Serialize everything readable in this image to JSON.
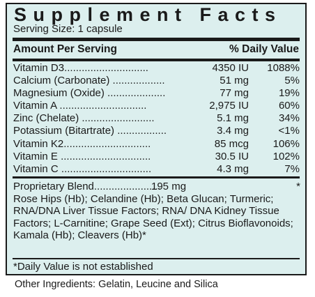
{
  "title": "Supplement Facts",
  "serving_size": "Serving Size: 1 capsule",
  "header": {
    "amount_label": "Amount Per Serving",
    "dv_label": "% Daily Value"
  },
  "nutrients": [
    {
      "text": "Vitamin D3.............................",
      "amount": "4350 IU",
      "dv": "1088%"
    },
    {
      "text": "Calcium (Carbonate) ..................",
      "amount": "51 mg",
      "dv": "5%"
    },
    {
      "text": "Magnesium (Oxide) ....................",
      "amount": "77 mg",
      "dv": "19%"
    },
    {
      "text": "Vitamin A ..............................",
      "amount": "2,975 IU",
      "dv": "60%"
    },
    {
      "text": "Zinc (Chelate) .........................",
      "amount": "5.1 mg",
      "dv": "34%"
    },
    {
      "text": "Potassium (Bitartrate) .................",
      "amount": "3.4 mg",
      "dv": "<1%"
    },
    {
      "text": "Vitamin K2..............................",
      "amount": "85 mcg",
      "dv": "106%"
    },
    {
      "text": "Vitamin E ...............................",
      "amount": "30.5 IU",
      "dv": "102%"
    },
    {
      "text": "Vitamin C ...............................",
      "amount": "4.3 mg",
      "dv": "7%"
    }
  ],
  "blend": {
    "label": "Proprietary Blend.......................",
    "amount": "195 mg",
    "star": "*",
    "ingredients": "Rose Hips (Hb); Celandine (Hb); Beta Glucan; Turmeric; RNA/DNA Liver Tissue Factors; RNA/ DNA Kidney Tissue Factors; L-Carnitine; Grape Seed (Ext); Citrus Bioflavonoids; Kamala (Hb); Cleavers (Hb)*"
  },
  "footnote": "*Daily Value is not established",
  "other_ingredients": "Other Ingredients: Gelatin, Leucine and Silica"
}
